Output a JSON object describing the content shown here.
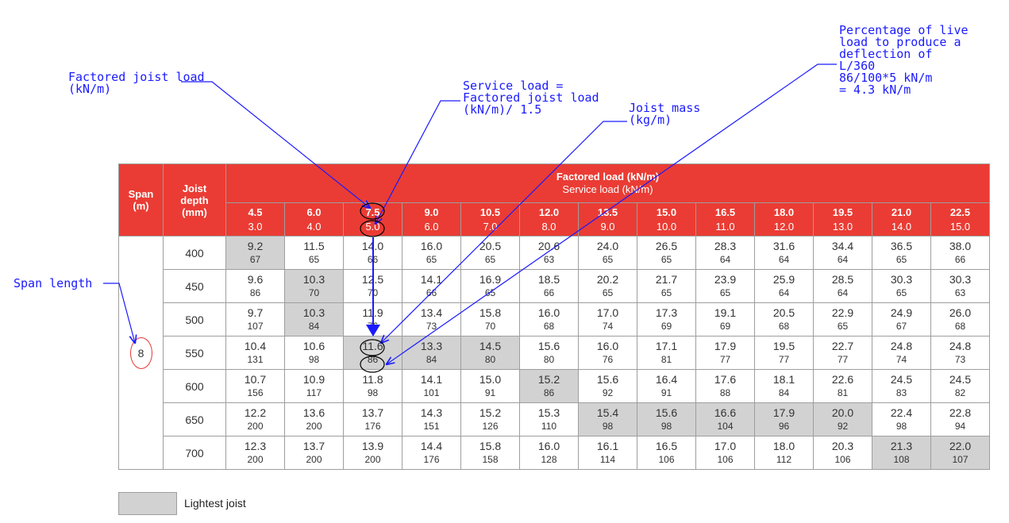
{
  "annotations": {
    "factored_joist_load": "Factored joist load\n(kN/m)",
    "service_load": "Service load =\nFactored joist load\n(kN/m)/ 1.5",
    "joist_mass": "Joist mass\n(kg/m)",
    "percentage_live_load": "Percentage of live\nload to produce a\ndeflection of\nL/360\n86/100*5 kN/m\n= 4.3 kN/m",
    "span_length": "Span length"
  },
  "table": {
    "span_header": "Span\n(m)",
    "depth_header": "Joist\ndepth\n(mm)",
    "factored_title": "Factored load (kN/m)",
    "service_title": "Service load (kN/m)",
    "span_value": "8",
    "loads": [
      {
        "factored": "4.5",
        "service": "3.0"
      },
      {
        "factored": "6.0",
        "service": "4.0"
      },
      {
        "factored": "7.5",
        "service": "5.0"
      },
      {
        "factored": "9.0",
        "service": "6.0"
      },
      {
        "factored": "10.5",
        "service": "7.0"
      },
      {
        "factored": "12.0",
        "service": "8.0"
      },
      {
        "factored": "13.5",
        "service": "9.0"
      },
      {
        "factored": "15.0",
        "service": "10.0"
      },
      {
        "factored": "16.5",
        "service": "11.0"
      },
      {
        "factored": "18.0",
        "service": "12.0"
      },
      {
        "factored": "19.5",
        "service": "13.0"
      },
      {
        "factored": "21.0",
        "service": "14.0"
      },
      {
        "factored": "22.5",
        "service": "15.0"
      }
    ],
    "rows": [
      {
        "depth": "400",
        "cells": [
          [
            "9.2",
            "67"
          ],
          [
            "11.5",
            "65"
          ],
          [
            "14.0",
            "66"
          ],
          [
            "16.0",
            "65"
          ],
          [
            "20.5",
            "65"
          ],
          [
            "20.6",
            "63"
          ],
          [
            "24.0",
            "65"
          ],
          [
            "26.5",
            "65"
          ],
          [
            "28.3",
            "64"
          ],
          [
            "31.6",
            "64"
          ],
          [
            "34.4",
            "64"
          ],
          [
            "36.5",
            "65"
          ],
          [
            "38.0",
            "66"
          ]
        ],
        "lightest": [
          0
        ]
      },
      {
        "depth": "450",
        "cells": [
          [
            "9.6",
            "86"
          ],
          [
            "10.3",
            "70"
          ],
          [
            "12.5",
            "70"
          ],
          [
            "14.1",
            "66"
          ],
          [
            "16.9",
            "65"
          ],
          [
            "18.5",
            "66"
          ],
          [
            "20.2",
            "65"
          ],
          [
            "21.7",
            "65"
          ],
          [
            "23.9",
            "65"
          ],
          [
            "25.9",
            "64"
          ],
          [
            "28.5",
            "64"
          ],
          [
            "30.3",
            "65"
          ],
          [
            "30.3",
            "63"
          ]
        ],
        "lightest": [
          1
        ]
      },
      {
        "depth": "500",
        "cells": [
          [
            "9.7",
            "107"
          ],
          [
            "10.3",
            "84"
          ],
          [
            "11.9",
            "76"
          ],
          [
            "13.4",
            "73"
          ],
          [
            "15.8",
            "70"
          ],
          [
            "16.0",
            "68"
          ],
          [
            "17.0",
            "74"
          ],
          [
            "17.3",
            "69"
          ],
          [
            "19.1",
            "69"
          ],
          [
            "20.5",
            "68"
          ],
          [
            "22.9",
            "65"
          ],
          [
            "24.9",
            "67"
          ],
          [
            "26.0",
            "68"
          ]
        ],
        "lightest": [
          1
        ]
      },
      {
        "depth": "550",
        "cells": [
          [
            "10.4",
            "131"
          ],
          [
            "10.6",
            "98"
          ],
          [
            "11.6",
            "86"
          ],
          [
            "13.3",
            "84"
          ],
          [
            "14.5",
            "80"
          ],
          [
            "15.6",
            "80"
          ],
          [
            "16.0",
            "76"
          ],
          [
            "17.1",
            "81"
          ],
          [
            "17.9",
            "77"
          ],
          [
            "19.5",
            "77"
          ],
          [
            "22.7",
            "77"
          ],
          [
            "24.8",
            "74"
          ],
          [
            "24.8",
            "73"
          ]
        ],
        "lightest": [
          2,
          3,
          4
        ]
      },
      {
        "depth": "600",
        "cells": [
          [
            "10.7",
            "156"
          ],
          [
            "10.9",
            "117"
          ],
          [
            "11.8",
            "98"
          ],
          [
            "14.1",
            "101"
          ],
          [
            "15.0",
            "91"
          ],
          [
            "15.2",
            "86"
          ],
          [
            "15.6",
            "92"
          ],
          [
            "16.4",
            "91"
          ],
          [
            "17.6",
            "88"
          ],
          [
            "18.1",
            "84"
          ],
          [
            "22.6",
            "81"
          ],
          [
            "24.5",
            "83"
          ],
          [
            "24.5",
            "82"
          ]
        ],
        "lightest": [
          5
        ]
      },
      {
        "depth": "650",
        "cells": [
          [
            "12.2",
            "200"
          ],
          [
            "13.6",
            "200"
          ],
          [
            "13.7",
            "176"
          ],
          [
            "14.3",
            "151"
          ],
          [
            "15.2",
            "126"
          ],
          [
            "15.3",
            "110"
          ],
          [
            "15.4",
            "98"
          ],
          [
            "15.6",
            "98"
          ],
          [
            "16.6",
            "104"
          ],
          [
            "17.9",
            "96"
          ],
          [
            "20.0",
            "92"
          ],
          [
            "22.4",
            "98"
          ],
          [
            "22.8",
            "94"
          ]
        ],
        "lightest": [
          6,
          7,
          8,
          9,
          10
        ]
      },
      {
        "depth": "700",
        "cells": [
          [
            "12.3",
            "200"
          ],
          [
            "13.7",
            "200"
          ],
          [
            "13.9",
            "200"
          ],
          [
            "14.4",
            "176"
          ],
          [
            "15.8",
            "158"
          ],
          [
            "16.0",
            "128"
          ],
          [
            "16.1",
            "114"
          ],
          [
            "16.5",
            "106"
          ],
          [
            "17.0",
            "106"
          ],
          [
            "18.0",
            "112"
          ],
          [
            "20.3",
            "106"
          ],
          [
            "21.3",
            "108"
          ],
          [
            "22.0",
            "107"
          ]
        ],
        "lightest": [
          11,
          12
        ]
      }
    ]
  },
  "legend": {
    "label": "Lightest joist"
  },
  "colors": {
    "header_red": "#ea3c34",
    "lightest_grey": "#d2d2d2",
    "annotation_blue": "#1a1aff",
    "circle_red": "#e53935"
  }
}
